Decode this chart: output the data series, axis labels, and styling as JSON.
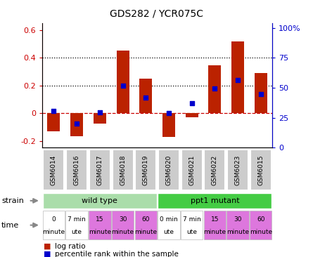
{
  "title": "GDS282 / YCR075C",
  "samples": [
    "GSM6014",
    "GSM6016",
    "GSM6017",
    "GSM6018",
    "GSM6019",
    "GSM6020",
    "GSM6021",
    "GSM6022",
    "GSM6023",
    "GSM6015"
  ],
  "log_ratio": [
    -0.13,
    -0.165,
    -0.075,
    0.45,
    0.25,
    -0.17,
    -0.03,
    0.345,
    0.52,
    0.29
  ],
  "percentile": [
    0.305,
    0.2,
    0.295,
    0.52,
    0.42,
    0.29,
    0.37,
    0.495,
    0.565,
    0.445
  ],
  "ylim_left": [
    -0.25,
    0.65
  ],
  "ylim_right": [
    0.0,
    1.04
  ],
  "yticks_left": [
    -0.2,
    0.0,
    0.2,
    0.4,
    0.6
  ],
  "ytick_labels_left": [
    "-0.2",
    "0",
    "0.2",
    "0.4",
    "0.6"
  ],
  "yticks_right": [
    0.0,
    0.25,
    0.5,
    0.75,
    1.0
  ],
  "ytick_labels_right": [
    "0",
    "25",
    "50",
    "75",
    "100%"
  ],
  "hlines": [
    0.0,
    0.2,
    0.4
  ],
  "hline_styles": [
    "--",
    ":",
    ":"
  ],
  "hline_colors": [
    "#cc0000",
    "black",
    "black"
  ],
  "bar_color": "#bb2200",
  "dot_color": "#0000cc",
  "strain_wild_color": "#aaddaa",
  "strain_wild_label": "wild type",
  "strain_mutant_color": "#44cc44",
  "strain_mutant_label": "ppt1 mutant",
  "strain_wild_cols": [
    0,
    1,
    2,
    3,
    4
  ],
  "strain_mutant_cols": [
    5,
    6,
    7,
    8,
    9
  ],
  "time_labels_line1": [
    "0",
    "7 min",
    "15",
    "30",
    "60",
    "0 min",
    "7 min",
    "15",
    "30",
    "60"
  ],
  "time_labels_line2": [
    "minute",
    "ute",
    "minute",
    "minute",
    "minute",
    "ute",
    "ute",
    "minute",
    "minute",
    "minute"
  ],
  "time_colors": [
    "#ffffff",
    "#ffffff",
    "#dd77dd",
    "#dd77dd",
    "#dd77dd",
    "#ffffff",
    "#ffffff",
    "#dd77dd",
    "#dd77dd",
    "#dd77dd"
  ],
  "sample_box_color": "#cccccc",
  "legend_bar_color": "#bb2200",
  "legend_dot_color": "#0000cc",
  "left_tick_color": "#cc0000",
  "right_tick_color": "#0000cc",
  "arrow_color": "#888888"
}
